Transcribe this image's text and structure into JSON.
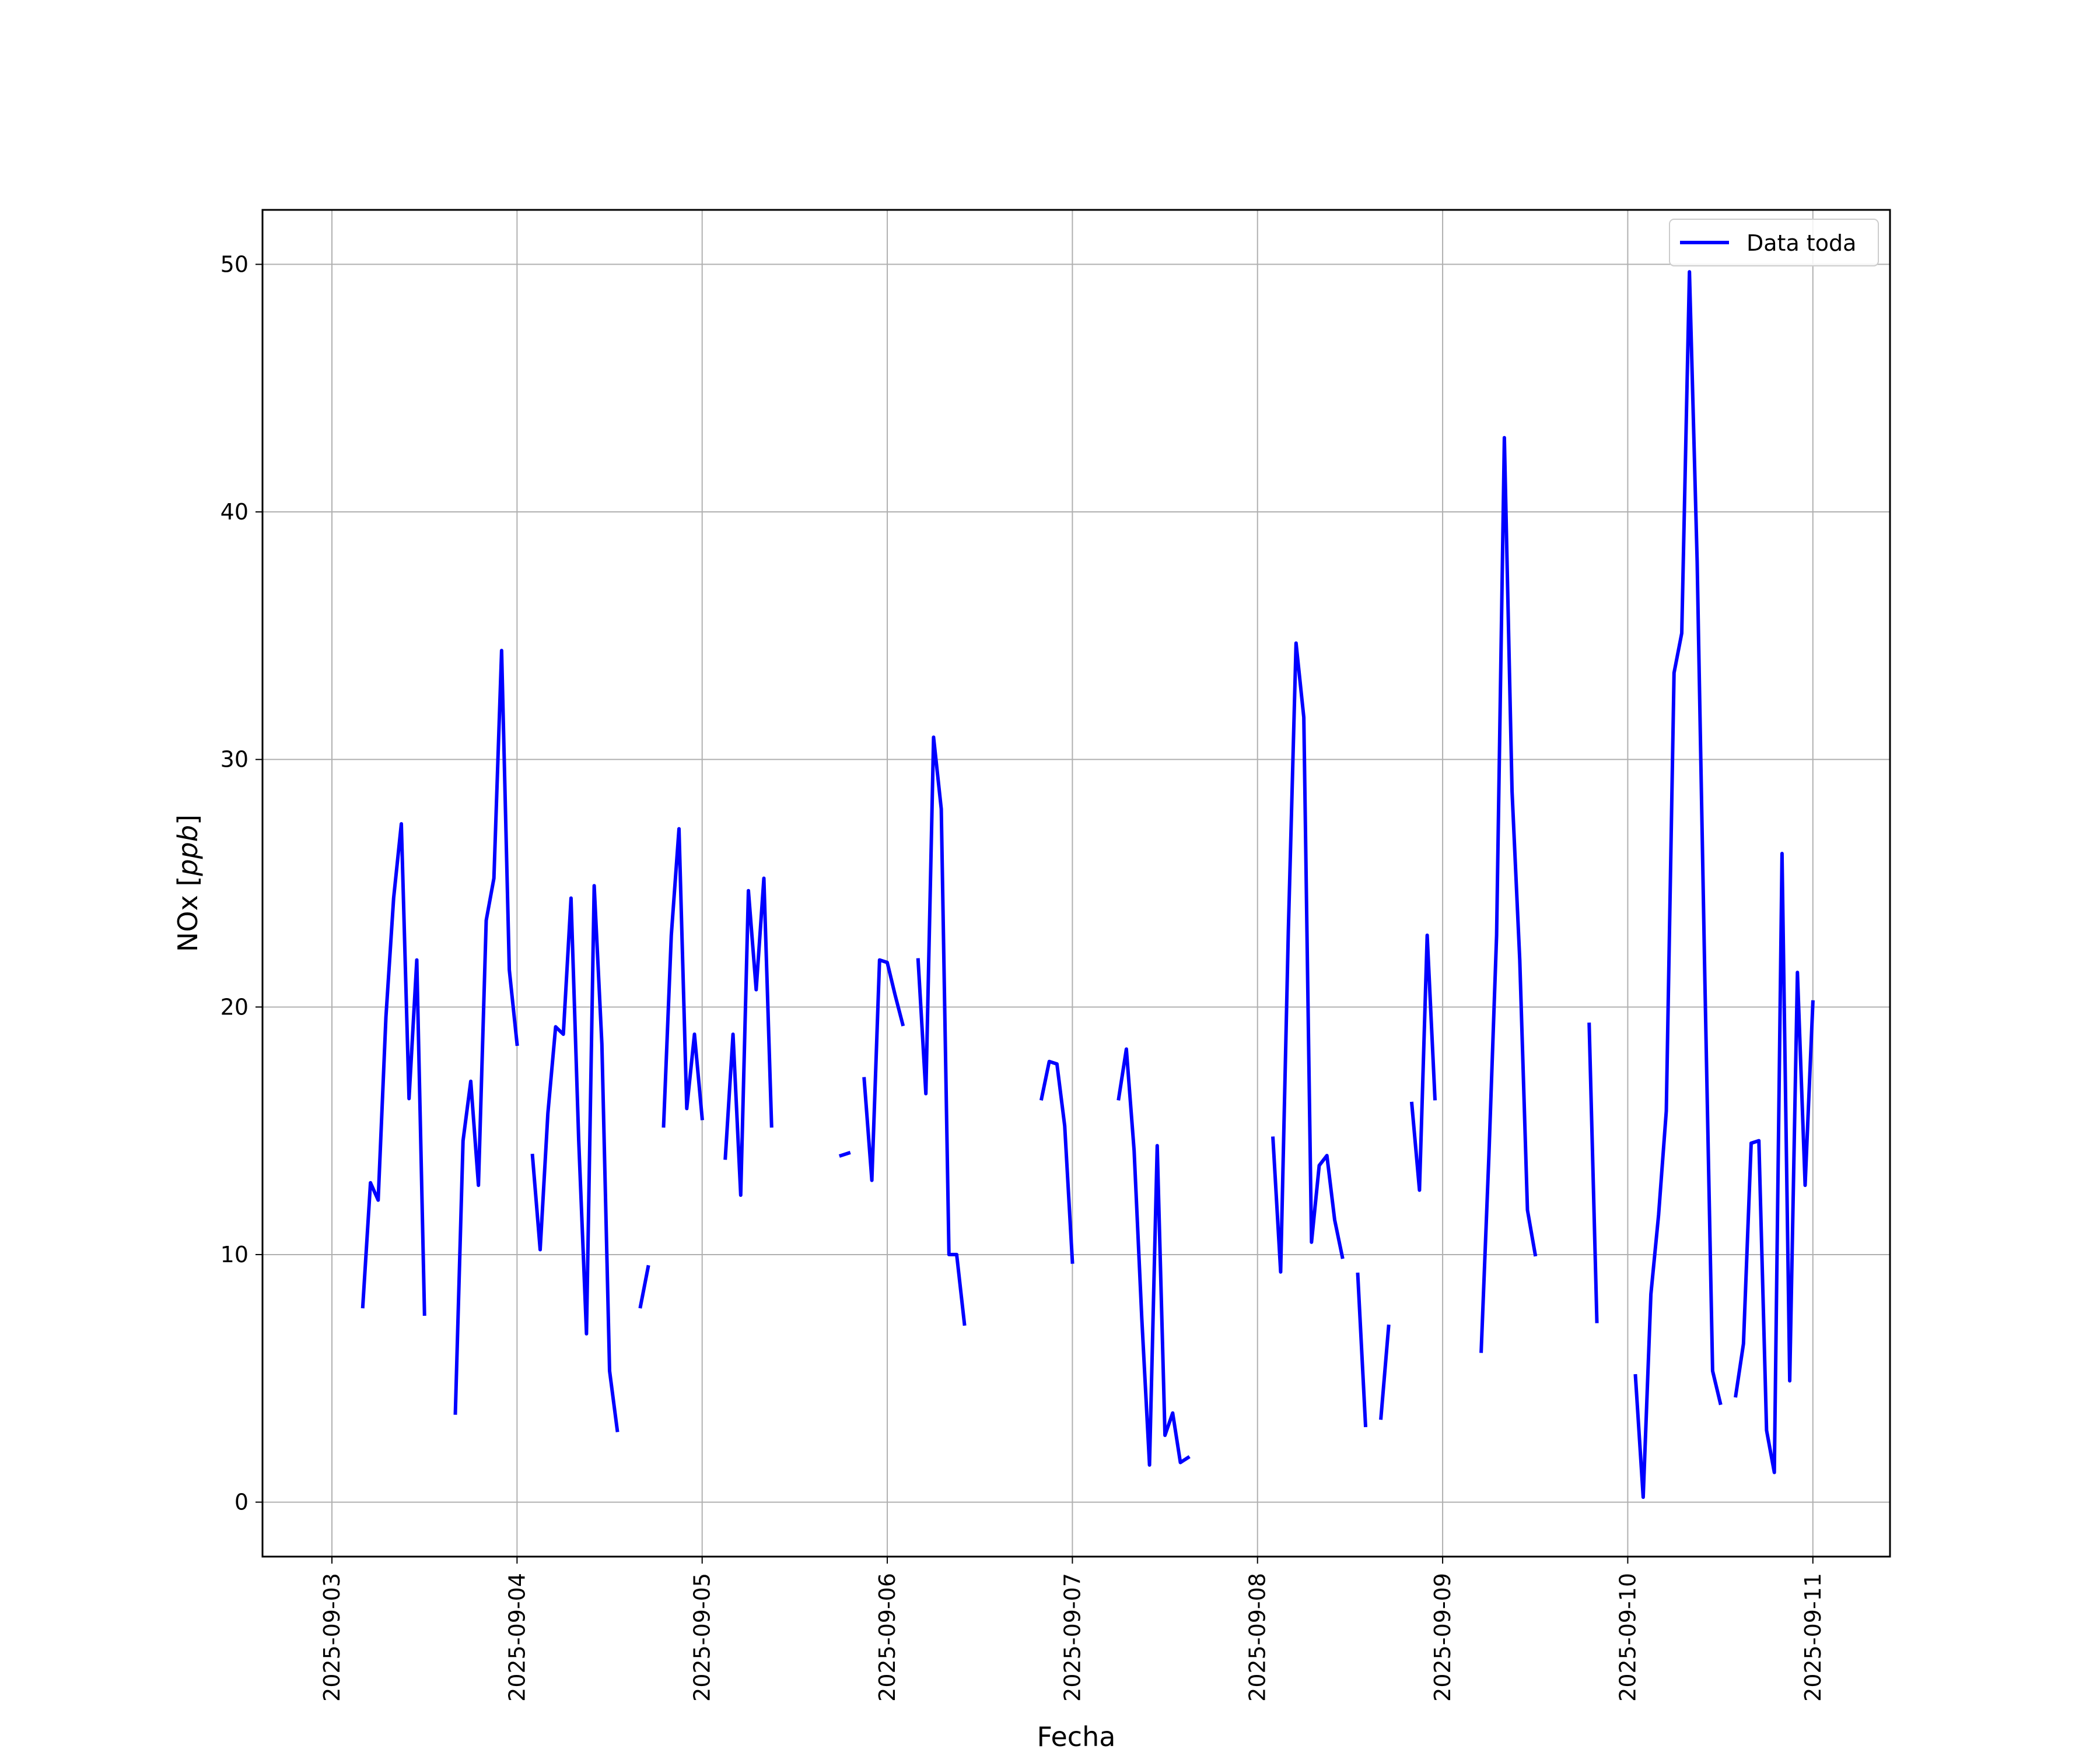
{
  "chart_data": {
    "type": "line",
    "xlabel": "Fecha",
    "ylabel": "NOx [ppb]",
    "ylabel_main": "NOx ",
    "ylabel_bracket_open": "[",
    "ylabel_unit": "ppb",
    "ylabel_bracket_close": "]",
    "x_range": [
      "2025-09-02T15:00",
      "2025-09-11T10:00"
    ],
    "ylim": [
      -2.2,
      52.2
    ],
    "x_ticks": [
      "2025-09-03",
      "2025-09-04",
      "2025-09-05",
      "2025-09-06",
      "2025-09-07",
      "2025-09-08",
      "2025-09-09",
      "2025-09-10",
      "2025-09-11"
    ],
    "y_ticks": [
      "0",
      "10",
      "20",
      "30",
      "40",
      "50"
    ],
    "grid": true,
    "legend_position": "top-right",
    "series": [
      {
        "name": "Data toda",
        "color": "#0000ff",
        "segments": [
          [
            [
              "2025-09-03T04:00",
              7.9
            ],
            [
              "2025-09-03T05:00",
              12.9
            ],
            [
              "2025-09-03T06:00",
              12.2
            ],
            [
              "2025-09-03T07:00",
              19.6
            ],
            [
              "2025-09-03T08:00",
              24.4
            ],
            [
              "2025-09-03T09:00",
              27.4
            ],
            [
              "2025-09-03T10:00",
              16.3
            ],
            [
              "2025-09-03T11:00",
              21.9
            ],
            [
              "2025-09-03T12:00",
              7.6
            ]
          ],
          [
            [
              "2025-09-03T16:00",
              3.6
            ],
            [
              "2025-09-03T17:00",
              14.6
            ],
            [
              "2025-09-03T18:00",
              17.0
            ],
            [
              "2025-09-03T19:00",
              12.8
            ],
            [
              "2025-09-03T20:00",
              23.5
            ],
            [
              "2025-09-03T21:00",
              25.2
            ],
            [
              "2025-09-03T22:00",
              34.4
            ],
            [
              "2025-09-03T23:00",
              21.5
            ],
            [
              "2025-09-04T00:00",
              18.5
            ]
          ],
          [
            [
              "2025-09-04T02:00",
              14.0
            ],
            [
              "2025-09-04T03:00",
              10.2
            ],
            [
              "2025-09-04T04:00",
              15.7
            ],
            [
              "2025-09-04T05:00",
              19.2
            ],
            [
              "2025-09-04T06:00",
              18.9
            ],
            [
              "2025-09-04T07:00",
              24.4
            ],
            [
              "2025-09-04T08:00",
              14.6
            ],
            [
              "2025-09-04T09:00",
              6.8
            ],
            [
              "2025-09-04T10:00",
              24.9
            ],
            [
              "2025-09-04T11:00",
              18.5
            ],
            [
              "2025-09-04T12:00",
              5.3
            ],
            [
              "2025-09-04T13:00",
              2.9
            ]
          ],
          [
            [
              "2025-09-04T16:00",
              7.9
            ],
            [
              "2025-09-04T17:00",
              9.5
            ]
          ],
          [
            [
              "2025-09-04T19:00",
              15.2
            ],
            [
              "2025-09-04T20:00",
              22.9
            ],
            [
              "2025-09-04T21:00",
              27.2
            ],
            [
              "2025-09-04T22:00",
              15.9
            ],
            [
              "2025-09-04T23:00",
              18.9
            ],
            [
              "2025-09-05T00:00",
              15.5
            ]
          ],
          [
            [
              "2025-09-05T03:00",
              13.9
            ],
            [
              "2025-09-05T04:00",
              18.9
            ],
            [
              "2025-09-05T05:00",
              12.4
            ],
            [
              "2025-09-05T06:00",
              24.7
            ],
            [
              "2025-09-05T07:00",
              20.7
            ],
            [
              "2025-09-05T08:00",
              25.2
            ],
            [
              "2025-09-05T09:00",
              15.2
            ]
          ],
          [
            [
              "2025-09-05T18:00",
              14.0
            ],
            [
              "2025-09-05T19:00",
              14.1
            ]
          ],
          [
            [
              "2025-09-05T21:00",
              17.1
            ],
            [
              "2025-09-05T22:00",
              13.0
            ],
            [
              "2025-09-05T23:00",
              21.9
            ],
            [
              "2025-09-06T00:00",
              21.8
            ],
            [
              "2025-09-06T01:00",
              20.5
            ],
            [
              "2025-09-06T02:00",
              19.3
            ]
          ],
          [
            [
              "2025-09-06T04:00",
              21.9
            ],
            [
              "2025-09-06T05:00",
              16.5
            ],
            [
              "2025-09-06T06:00",
              30.9
            ],
            [
              "2025-09-06T07:00",
              28.0
            ],
            [
              "2025-09-06T08:00",
              10.0
            ],
            [
              "2025-09-06T09:00",
              10.0
            ],
            [
              "2025-09-06T10:00",
              7.2
            ]
          ],
          [
            [
              "2025-09-06T20:00",
              16.3
            ],
            [
              "2025-09-06T21:00",
              17.8
            ],
            [
              "2025-09-06T22:00",
              17.7
            ],
            [
              "2025-09-06T23:00",
              15.2
            ],
            [
              "2025-09-07T00:00",
              9.7
            ]
          ],
          [
            [
              "2025-09-07T06:00",
              16.3
            ],
            [
              "2025-09-07T07:00",
              18.3
            ],
            [
              "2025-09-07T08:00",
              14.2
            ],
            [
              "2025-09-07T09:00",
              7.4
            ],
            [
              "2025-09-07T10:00",
              1.5
            ],
            [
              "2025-09-07T11:00",
              14.4
            ],
            [
              "2025-09-07T12:00",
              2.7
            ],
            [
              "2025-09-07T13:00",
              3.6
            ],
            [
              "2025-09-07T14:00",
              1.6
            ],
            [
              "2025-09-07T15:00",
              1.8
            ]
          ],
          [
            [
              "2025-09-08T02:00",
              14.7
            ],
            [
              "2025-09-08T03:00",
              9.3
            ],
            [
              "2025-09-08T04:00",
              23.1
            ],
            [
              "2025-09-08T05:00",
              34.7
            ],
            [
              "2025-09-08T06:00",
              31.7
            ],
            [
              "2025-09-08T07:00",
              10.5
            ],
            [
              "2025-09-08T08:00",
              13.6
            ],
            [
              "2025-09-08T09:00",
              14.0
            ],
            [
              "2025-09-08T10:00",
              11.4
            ],
            [
              "2025-09-08T11:00",
              9.9
            ]
          ],
          [
            [
              "2025-09-08T13:00",
              9.2
            ],
            [
              "2025-09-08T14:00",
              3.1
            ]
          ],
          [
            [
              "2025-09-08T16:00",
              3.4
            ],
            [
              "2025-09-08T17:00",
              7.1
            ]
          ],
          [
            [
              "2025-09-08T20:00",
              16.1
            ],
            [
              "2025-09-08T21:00",
              12.6
            ],
            [
              "2025-09-08T22:00",
              22.9
            ],
            [
              "2025-09-08T23:00",
              16.3
            ]
          ],
          [
            [
              "2025-09-09T05:00",
              6.1
            ],
            [
              "2025-09-09T06:00",
              14.0
            ],
            [
              "2025-09-09T07:00",
              22.9
            ],
            [
              "2025-09-09T08:00",
              43.0
            ],
            [
              "2025-09-09T09:00",
              28.7
            ],
            [
              "2025-09-09T10:00",
              21.9
            ],
            [
              "2025-09-09T11:00",
              11.8
            ],
            [
              "2025-09-09T12:00",
              10.0
            ]
          ],
          [
            [
              "2025-09-09T19:00",
              19.3
            ],
            [
              "2025-09-09T20:00",
              7.3
            ]
          ],
          [
            [
              "2025-09-10T01:00",
              5.1
            ],
            [
              "2025-09-10T02:00",
              0.2
            ],
            [
              "2025-09-10T03:00",
              8.4
            ],
            [
              "2025-09-10T04:00",
              11.6
            ],
            [
              "2025-09-10T05:00",
              15.8
            ],
            [
              "2025-09-10T06:00",
              33.5
            ],
            [
              "2025-09-10T07:00",
              35.1
            ],
            [
              "2025-09-10T08:00",
              49.7
            ],
            [
              "2025-09-10T09:00",
              38.0
            ],
            [
              "2025-09-10T10:00",
              21.0
            ],
            [
              "2025-09-10T11:00",
              5.3
            ],
            [
              "2025-09-10T12:00",
              4.0
            ]
          ],
          [
            [
              "2025-09-10T14:00",
              4.3
            ],
            [
              "2025-09-10T15:00",
              6.4
            ],
            [
              "2025-09-10T16:00",
              14.5
            ],
            [
              "2025-09-10T17:00",
              14.6
            ],
            [
              "2025-09-10T18:00",
              2.9
            ],
            [
              "2025-09-10T19:00",
              1.2
            ],
            [
              "2025-09-10T20:00",
              26.2
            ],
            [
              "2025-09-10T21:00",
              4.9
            ],
            [
              "2025-09-10T22:00",
              21.4
            ],
            [
              "2025-09-10T23:00",
              12.8
            ],
            [
              "2025-09-11T00:00",
              20.2
            ]
          ]
        ]
      }
    ]
  }
}
